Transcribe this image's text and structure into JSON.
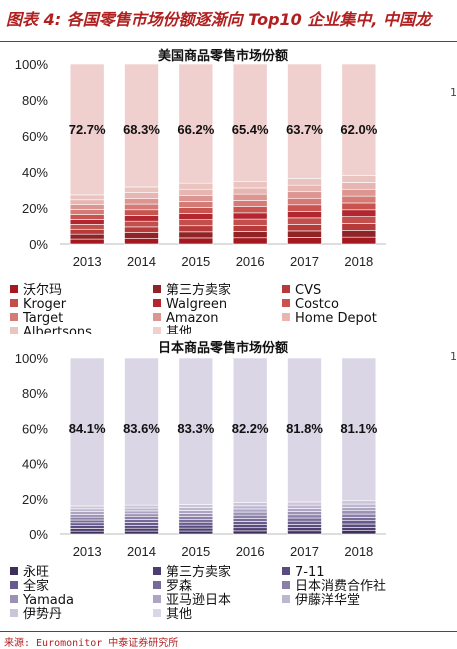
{
  "header": {
    "title": "图表 4: 各国零售市场份额逐渐向 Top10 企业集中, 中国龙"
  },
  "edge_marks": [
    "1",
    "1"
  ],
  "source": "来源: Euromonitor 中泰证券研究所",
  "chart_data": [
    {
      "type": "bar",
      "stacked": true,
      "title": "美国商品零售市场份额",
      "categories": [
        "2013",
        "2014",
        "2015",
        "2016",
        "2017",
        "2018"
      ],
      "ylim": [
        0,
        100
      ],
      "yticks": [
        "0%",
        "20%",
        "40%",
        "60%",
        "80%",
        "100%"
      ],
      "others_values": [
        72.7,
        68.3,
        66.2,
        65.4,
        63.7,
        62.0
      ],
      "others_labels": [
        "72.7%",
        "68.3%",
        "66.2%",
        "65.4%",
        "63.7%",
        "62.0%"
      ],
      "legend": [
        {
          "name": "沃尔玛",
          "color": "#a41820"
        },
        {
          "name": "第三方卖家",
          "color": "#8f2326"
        },
        {
          "name": "CVS",
          "color": "#b73a3b"
        },
        {
          "name": "Kroger",
          "color": "#c24f4b"
        },
        {
          "name": "Walgreen",
          "color": "#b3262f"
        },
        {
          "name": "Costco",
          "color": "#c9534f"
        },
        {
          "name": "Target",
          "color": "#d57a74"
        },
        {
          "name": "Amazon",
          "color": "#dc9590"
        },
        {
          "name": "Home Depot",
          "color": "#e7b6b2"
        },
        {
          "name": "Albertsons",
          "color": "#eac4c1"
        },
        {
          "name": "其他",
          "color": "#f0cfcf"
        }
      ],
      "others_color": "#f0cfcf"
    },
    {
      "type": "bar",
      "stacked": true,
      "title": "日本商品零售市场份额",
      "categories": [
        "2013",
        "2014",
        "2015",
        "2016",
        "2017",
        "2018"
      ],
      "ylim": [
        0,
        100
      ],
      "yticks": [
        "0%",
        "20%",
        "40%",
        "60%",
        "80%",
        "100%"
      ],
      "others_values": [
        84.1,
        83.6,
        83.3,
        82.2,
        81.8,
        81.1
      ],
      "others_labels": [
        "84.1%",
        "83.6%",
        "83.3%",
        "82.2%",
        "81.8%",
        "81.1%"
      ],
      "legend": [
        {
          "name": "永旺",
          "color": "#3e2f5b"
        },
        {
          "name": "第三方卖家",
          "color": "#4c3d6f"
        },
        {
          "name": "7-11",
          "color": "#5a4b7f"
        },
        {
          "name": "全家",
          "color": "#675a8c"
        },
        {
          "name": "罗森",
          "color": "#766a98"
        },
        {
          "name": "日本消费合作社",
          "color": "#8a7fa7"
        },
        {
          "name": "Yamada",
          "color": "#9b91b4"
        },
        {
          "name": "亚马逊日本",
          "color": "#aca4c2"
        },
        {
          "name": "伊藤洋华堂",
          "color": "#bdb6cf"
        },
        {
          "name": "伊势丹",
          "color": "#cbc5da"
        },
        {
          "name": "其他",
          "color": "#dad6e6"
        }
      ],
      "others_color": "#dad6e6"
    }
  ]
}
